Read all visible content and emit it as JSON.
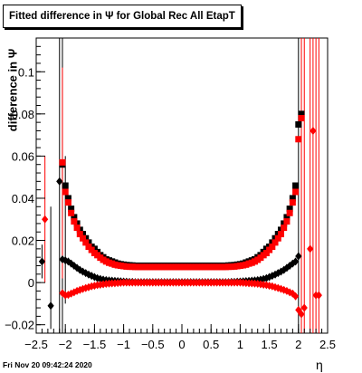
{
  "title": "Fitted difference in  Ψ  for Global Rec All EtapT",
  "timestamp": "Fri Nov 20 09:42:24 2020",
  "chart_data": {
    "type": "scatter",
    "title": "Fitted difference in  Ψ  for Global Rec All EtapT",
    "xlabel": "η",
    "ylabel": "difference in Ψ",
    "xlim": [
      -2.5,
      2.5
    ],
    "ylim": [
      -0.024,
      0.116
    ],
    "xticks": [
      -2.5,
      -2,
      -1.5,
      -1,
      -0.5,
      0,
      0.5,
      1,
      1.5,
      2,
      2.5
    ],
    "xtick_labels": [
      "−2.5",
      "−2",
      "−1.5",
      "−1",
      "−0.5",
      "0",
      "0.5",
      "1",
      "1.5",
      "2",
      "2.5"
    ],
    "yticks": [
      -0.02,
      0,
      0.02,
      0.04,
      0.06,
      0.08,
      0.1
    ],
    "ytick_labels": [
      "−0.02",
      "0",
      "0.02",
      "0.04",
      "0.06",
      "0.08",
      "0.1"
    ],
    "grid": false,
    "legend": "none",
    "series": [
      {
        "marker": "square",
        "color": "#000000",
        "x": [
          -2.05,
          -2.0,
          -1.95,
          -1.9,
          -1.85,
          -1.8,
          -1.75,
          -1.7,
          -1.65,
          -1.6,
          -1.55,
          -1.5,
          -1.45,
          -1.4,
          -1.35,
          -1.3,
          -1.25,
          -1.2,
          -1.15,
          -1.1,
          -1.05,
          -1.0,
          -0.95,
          -0.9,
          -0.85,
          -0.8,
          -0.75,
          -0.7,
          -0.65,
          -0.6,
          -0.55,
          -0.5,
          -0.45,
          -0.4,
          -0.35,
          -0.3,
          -0.25,
          -0.2,
          -0.15,
          -0.1,
          -0.05,
          0.0,
          0.05,
          0.1,
          0.15,
          0.2,
          0.25,
          0.3,
          0.35,
          0.4,
          0.45,
          0.5,
          0.55,
          0.6,
          0.65,
          0.7,
          0.75,
          0.8,
          0.85,
          0.9,
          0.95,
          1.0,
          1.05,
          1.1,
          1.15,
          1.2,
          1.25,
          1.3,
          1.35,
          1.4,
          1.45,
          1.5,
          1.55,
          1.6,
          1.65,
          1.7,
          1.75,
          1.8,
          1.85,
          1.9,
          1.95,
          2.0,
          2.05
        ],
        "y": [
          0.056,
          0.046,
          0.04,
          0.035,
          0.031,
          0.028,
          0.025,
          0.023,
          0.021,
          0.019,
          0.017,
          0.016,
          0.0145,
          0.013,
          0.012,
          0.011,
          0.0105,
          0.01,
          0.0095,
          0.009,
          0.0087,
          0.0085,
          0.0083,
          0.0082,
          0.0081,
          0.008,
          0.008,
          0.008,
          0.008,
          0.008,
          0.008,
          0.008,
          0.008,
          0.008,
          0.008,
          0.008,
          0.008,
          0.008,
          0.008,
          0.008,
          0.008,
          0.008,
          0.008,
          0.008,
          0.008,
          0.008,
          0.008,
          0.008,
          0.008,
          0.008,
          0.008,
          0.008,
          0.008,
          0.008,
          0.008,
          0.008,
          0.008,
          0.0081,
          0.0082,
          0.0083,
          0.0085,
          0.0087,
          0.009,
          0.0095,
          0.01,
          0.0105,
          0.011,
          0.012,
          0.013,
          0.0145,
          0.016,
          0.017,
          0.019,
          0.021,
          0.023,
          0.025,
          0.028,
          0.031,
          0.035,
          0.04,
          0.046,
          0.075,
          0.08
        ]
      },
      {
        "marker": "square",
        "color": "#ff0000",
        "x": [
          -2.05,
          -2.0,
          -1.95,
          -1.9,
          -1.85,
          -1.8,
          -1.75,
          -1.7,
          -1.65,
          -1.6,
          -1.55,
          -1.5,
          -1.45,
          -1.4,
          -1.35,
          -1.3,
          -1.25,
          -1.2,
          -1.15,
          -1.1,
          -1.05,
          -1.0,
          -0.95,
          -0.9,
          -0.85,
          -0.8,
          -0.75,
          -0.7,
          -0.65,
          -0.6,
          -0.55,
          -0.5,
          -0.45,
          -0.4,
          -0.35,
          -0.3,
          -0.25,
          -0.2,
          -0.15,
          -0.1,
          -0.05,
          0.0,
          0.05,
          0.1,
          0.15,
          0.2,
          0.25,
          0.3,
          0.35,
          0.4,
          0.45,
          0.5,
          0.55,
          0.6,
          0.65,
          0.7,
          0.75,
          0.8,
          0.85,
          0.9,
          0.95,
          1.0,
          1.05,
          1.1,
          1.15,
          1.2,
          1.25,
          1.3,
          1.35,
          1.4,
          1.45,
          1.5,
          1.55,
          1.6,
          1.65,
          1.7,
          1.75,
          1.8,
          1.85,
          1.9,
          1.95,
          2.0,
          2.05
        ],
        "y": [
          0.057,
          0.043,
          0.038,
          0.033,
          0.029,
          0.026,
          0.023,
          0.021,
          0.019,
          0.017,
          0.0155,
          0.014,
          0.013,
          0.0118,
          0.0108,
          0.01,
          0.0094,
          0.009,
          0.0085,
          0.0082,
          0.008,
          0.0078,
          0.0076,
          0.0075,
          0.0075,
          0.0074,
          0.0074,
          0.0074,
          0.0074,
          0.0074,
          0.0074,
          0.0074,
          0.0074,
          0.0074,
          0.0074,
          0.0074,
          0.0074,
          0.0074,
          0.0074,
          0.0074,
          0.0074,
          0.0074,
          0.0074,
          0.0074,
          0.0074,
          0.0074,
          0.0074,
          0.0074,
          0.0074,
          0.0074,
          0.0074,
          0.0074,
          0.0074,
          0.0074,
          0.0074,
          0.0074,
          0.0074,
          0.0075,
          0.0075,
          0.0076,
          0.0078,
          0.008,
          0.0082,
          0.0085,
          0.009,
          0.0094,
          0.01,
          0.0108,
          0.0118,
          0.013,
          0.014,
          0.0155,
          0.017,
          0.019,
          0.021,
          0.023,
          0.026,
          0.029,
          0.033,
          0.038,
          0.043,
          0.068,
          0.078
        ]
      },
      {
        "marker": "diamond",
        "color": "#000000",
        "x": [
          -2.4,
          -2.25,
          -2.1,
          -2.05,
          -2.0,
          -1.95,
          -1.9,
          -1.85,
          -1.8,
          -1.75,
          -1.7,
          -1.65,
          -1.6,
          -1.55,
          -1.5,
          -1.45,
          -1.4,
          -1.35,
          -1.3,
          -1.25,
          -1.2,
          -1.15,
          -1.1,
          -1.05,
          -1.0,
          -0.95,
          -0.9,
          -0.85,
          -0.8,
          -0.75,
          -0.7,
          -0.65,
          -0.6,
          -0.55,
          -0.5,
          -0.45,
          -0.4,
          -0.35,
          -0.3,
          -0.25,
          -0.2,
          -0.15,
          -0.1,
          -0.05,
          0.0,
          0.05,
          0.1,
          0.15,
          0.2,
          0.25,
          0.3,
          0.35,
          0.4,
          0.45,
          0.5,
          0.55,
          0.6,
          0.65,
          0.7,
          0.75,
          0.8,
          0.85,
          0.9,
          0.95,
          1.0,
          1.05,
          1.1,
          1.15,
          1.2,
          1.25,
          1.3,
          1.35,
          1.4,
          1.45,
          1.5,
          1.55,
          1.6,
          1.65,
          1.7,
          1.75,
          1.8,
          1.85,
          1.9,
          1.95,
          2.0
        ],
        "y": [
          0.01,
          -0.011,
          0.048,
          0.011,
          0.0105,
          0.01,
          0.009,
          0.008,
          0.007,
          0.006,
          0.0052,
          0.0045,
          0.0038,
          0.0032,
          0.0026,
          0.0021,
          0.0017,
          0.0014,
          0.0012,
          0.001,
          0.0009,
          0.0008,
          0.0007,
          0.0006,
          0.0005,
          0.0004,
          0.0003,
          0.0003,
          0.0002,
          0.0002,
          0.0002,
          0.0002,
          0.0002,
          0.0002,
          0.0002,
          0.0002,
          0.0002,
          0.0002,
          0.0002,
          0.0002,
          0.0002,
          0.0002,
          0.0002,
          0.0002,
          0.0002,
          0.0002,
          0.0002,
          0.0002,
          0.0002,
          0.0002,
          0.0002,
          0.0002,
          0.0002,
          0.0002,
          0.0002,
          0.0002,
          0.0002,
          0.0002,
          0.0002,
          0.0002,
          0.0002,
          0.0003,
          0.0003,
          0.0004,
          0.0005,
          0.0006,
          0.0007,
          0.0008,
          0.0009,
          0.001,
          0.0012,
          0.0014,
          0.0017,
          0.0021,
          0.0026,
          0.0032,
          0.0038,
          0.0045,
          0.0052,
          0.006,
          0.007,
          0.008,
          0.009,
          0.01,
          0.0125
        ]
      },
      {
        "marker": "diamond",
        "color": "#ff0000",
        "x": [
          -2.35,
          -2.05,
          -2.0,
          -1.95,
          -1.9,
          -1.85,
          -1.8,
          -1.75,
          -1.7,
          -1.65,
          -1.6,
          -1.55,
          -1.5,
          -1.45,
          -1.4,
          -1.35,
          -1.3,
          -1.25,
          -1.2,
          -1.15,
          -1.1,
          -1.05,
          -1.0,
          -0.95,
          -0.9,
          -0.85,
          -0.8,
          -0.75,
          -0.7,
          -0.65,
          -0.6,
          -0.55,
          -0.5,
          -0.45,
          -0.4,
          -0.35,
          -0.3,
          -0.25,
          -0.2,
          -0.15,
          -0.1,
          -0.05,
          0.0,
          0.05,
          0.1,
          0.15,
          0.2,
          0.25,
          0.3,
          0.35,
          0.4,
          0.45,
          0.5,
          0.55,
          0.6,
          0.65,
          0.7,
          0.75,
          0.8,
          0.85,
          0.9,
          0.95,
          1.0,
          1.05,
          1.1,
          1.15,
          1.2,
          1.25,
          1.3,
          1.35,
          1.4,
          1.45,
          1.5,
          1.55,
          1.6,
          1.65,
          1.7,
          1.75,
          1.8,
          1.85,
          1.9,
          1.95,
          2.0,
          2.05,
          2.1,
          2.2,
          2.25,
          2.3,
          2.35
        ],
        "y": [
          0.03,
          -0.005,
          -0.006,
          -0.0058,
          -0.0052,
          -0.0046,
          -0.004,
          -0.0035,
          -0.003,
          -0.0026,
          -0.0022,
          -0.0018,
          -0.0015,
          -0.0012,
          -0.001,
          -0.0008,
          -0.0006,
          -0.0005,
          -0.0004,
          -0.0003,
          -0.0002,
          -0.0001,
          0.0,
          0.0,
          0.0,
          0.0,
          0.0,
          0.0,
          0.0,
          0.0,
          0.0,
          0.0,
          0.0,
          0.0,
          0.0,
          0.0,
          0.0,
          0.0,
          0.0,
          0.0,
          0.0,
          0.0,
          0.0,
          0.0,
          0.0,
          0.0,
          0.0,
          0.0,
          0.0,
          0.0,
          0.0,
          0.0,
          0.0,
          0.0,
          0.0,
          0.0,
          0.0,
          0.0,
          0.0,
          0.0,
          0.0,
          0.0,
          0.0,
          -0.0001,
          -0.0002,
          -0.0003,
          -0.0004,
          -0.0005,
          -0.0006,
          -0.0008,
          -0.001,
          -0.0012,
          -0.0015,
          -0.0018,
          -0.0022,
          -0.0026,
          -0.003,
          -0.0035,
          -0.004,
          -0.0046,
          -0.0052,
          -0.0065,
          -0.013,
          -0.015,
          -0.012,
          0.016,
          0.072,
          -0.006,
          -0.006
        ]
      }
    ],
    "error_bars": [
      {
        "x": -2.4,
        "ylow": 0.002,
        "yhigh": 0.018,
        "color": "#000000"
      },
      {
        "x": -2.25,
        "ylow": -0.022,
        "yhigh": 0.036,
        "color": "#000000"
      },
      {
        "x": -2.1,
        "ylow": -0.024,
        "yhigh": 0.116,
        "color": "#000000"
      },
      {
        "x": -2.05,
        "ylow": -0.024,
        "yhigh": 0.116,
        "color": "#000000"
      },
      {
        "x": -2.0,
        "ylow": -0.01,
        "yhigh": 0.06,
        "color": "#000000"
      },
      {
        "x": -2.35,
        "ylow": 0.0,
        "yhigh": 0.06,
        "color": "#ff0000"
      },
      {
        "x": -2.05,
        "ylow": 0.002,
        "yhigh": 0.102,
        "color": "#ff0000"
      },
      {
        "x": 2.0,
        "ylow": -0.024,
        "yhigh": 0.116,
        "color": "#000000"
      },
      {
        "x": 2.05,
        "ylow": -0.024,
        "yhigh": 0.116,
        "color": "#ff0000"
      },
      {
        "x": 2.1,
        "ylow": -0.024,
        "yhigh": 0.116,
        "color": "#ff0000"
      },
      {
        "x": 2.2,
        "ylow": -0.024,
        "yhigh": 0.116,
        "color": "#ff0000"
      },
      {
        "x": 2.25,
        "ylow": -0.024,
        "yhigh": 0.116,
        "color": "#ff0000"
      },
      {
        "x": 2.3,
        "ylow": -0.024,
        "yhigh": 0.116,
        "color": "#ff0000"
      },
      {
        "x": 2.35,
        "ylow": -0.024,
        "yhigh": 0.116,
        "color": "#ff0000"
      }
    ]
  }
}
